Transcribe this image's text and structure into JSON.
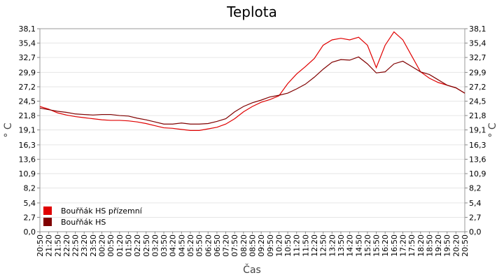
{
  "chart_data": {
    "type": "line",
    "title": "Teplota",
    "x_label": "Čas",
    "y_label": "° C",
    "categories": [
      "20:50",
      "21:20",
      "21:50",
      "22:20",
      "22:50",
      "23:20",
      "23:50",
      "00:20",
      "00:50",
      "01:20",
      "01:50",
      "02:20",
      "02:50",
      "03:20",
      "03:50",
      "04:20",
      "04:50",
      "05:20",
      "05:50",
      "06:20",
      "06:50",
      "07:20",
      "07:50",
      "08:20",
      "08:50",
      "09:20",
      "09:50",
      "10:20",
      "10:50",
      "11:20",
      "11:50",
      "12:20",
      "12:50",
      "13:20",
      "13:50",
      "14:20",
      "14:50",
      "15:20",
      "15:50",
      "16:20",
      "16:50",
      "17:20",
      "17:50",
      "18:20",
      "18:50",
      "19:20",
      "19:50",
      "20:20",
      "20:50"
    ],
    "series": [
      {
        "name": "Bouřňák HS přízemní",
        "color": "#e00000",
        "values": [
          23.5,
          23.0,
          22.3,
          21.9,
          21.6,
          21.4,
          21.2,
          21.0,
          20.9,
          20.9,
          20.8,
          20.6,
          20.3,
          19.9,
          19.5,
          19.4,
          19.2,
          19.0,
          19.0,
          19.3,
          19.6,
          20.2,
          21.2,
          22.5,
          23.5,
          24.3,
          24.8,
          25.5,
          27.8,
          29.6,
          31.0,
          32.5,
          35.0,
          36.0,
          36.3,
          36.0,
          36.5,
          35.0,
          30.8,
          35.0,
          37.5,
          36.0,
          33.0,
          30.0,
          28.8,
          28.0,
          27.5,
          27.0,
          26.0
        ]
      },
      {
        "name": "Bouřňák HS",
        "color": "#800000",
        "values": [
          23.2,
          22.9,
          22.6,
          22.4,
          22.1,
          22.0,
          21.9,
          22.0,
          22.0,
          21.8,
          21.7,
          21.3,
          21.0,
          20.6,
          20.2,
          20.2,
          20.4,
          20.2,
          20.2,
          20.3,
          20.7,
          21.2,
          22.5,
          23.5,
          24.2,
          24.7,
          25.3,
          25.6,
          26.0,
          26.8,
          27.7,
          29.0,
          30.5,
          31.8,
          32.3,
          32.2,
          32.8,
          31.5,
          29.8,
          30.0,
          31.5,
          32.0,
          31.0,
          30.0,
          29.5,
          28.5,
          27.5,
          27.0,
          26.0
        ]
      }
    ],
    "ylim": [
      0,
      38.1
    ],
    "yticks": [
      {
        "value": 0,
        "label": "0,0"
      },
      {
        "value": 2.7,
        "label": "2,7"
      },
      {
        "value": 5.4,
        "label": "5,4"
      },
      {
        "value": 8.2,
        "label": "8,2"
      },
      {
        "value": 10.9,
        "label": "10,9"
      },
      {
        "value": 13.6,
        "label": "13,6"
      },
      {
        "value": 16.3,
        "label": "16,3"
      },
      {
        "value": 19.1,
        "label": "19,1"
      },
      {
        "value": 21.8,
        "label": "21,8"
      },
      {
        "value": 24.5,
        "label": "24,5"
      },
      {
        "value": 27.2,
        "label": "27,2"
      },
      {
        "value": 29.9,
        "label": "29,9"
      },
      {
        "value": 32.7,
        "label": "32,7"
      },
      {
        "value": 35.4,
        "label": "35,4"
      },
      {
        "value": 38.1,
        "label": "38,1"
      }
    ],
    "grid": true,
    "legend_position": "lower left"
  }
}
